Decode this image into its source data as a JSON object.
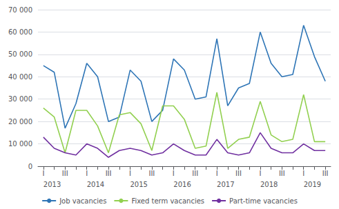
{
  "chart_data": {
    "type": "line",
    "categories": [
      "I",
      null,
      "III",
      null,
      "I",
      null,
      "III",
      null,
      "I",
      null,
      "III",
      null,
      "I",
      null,
      "III",
      null,
      "I",
      null,
      "III",
      null,
      "I",
      null,
      "III",
      null,
      "I",
      null,
      "III"
    ],
    "series": [
      {
        "name": "Job vacancies",
        "color": "#2E75B6",
        "values": [
          45000,
          42000,
          17000,
          28000,
          46000,
          40000,
          20000,
          22000,
          43000,
          38000,
          20000,
          25000,
          48000,
          43000,
          30000,
          31000,
          57000,
          27000,
          35000,
          37000,
          60000,
          46000,
          40000,
          41000,
          63000,
          49000,
          38000
        ]
      },
      {
        "name": "Fixed term vacancies",
        "color": "#92D050",
        "values": [
          26000,
          22000,
          6000,
          25000,
          25000,
          18000,
          6000,
          23000,
          24000,
          19000,
          7000,
          27000,
          27000,
          21000,
          8000,
          9000,
          33000,
          8000,
          12000,
          13000,
          29000,
          14000,
          11000,
          12000,
          32000,
          11000,
          11000
        ]
      },
      {
        "name": "Part-time vacancies",
        "color": "#7030A0",
        "values": [
          13000,
          8000,
          6000,
          5000,
          10000,
          8000,
          4000,
          7000,
          8000,
          7000,
          5000,
          6000,
          10000,
          7000,
          5000,
          5000,
          12000,
          6000,
          5000,
          6000,
          15000,
          8000,
          6000,
          6000,
          10000,
          7000,
          7000
        ]
      }
    ],
    "annotations": [
      {
        "text": "2013",
        "x": 0
      },
      {
        "text": "2014",
        "x": 4
      },
      {
        "text": "2015",
        "x": 8
      },
      {
        "text": "2016",
        "x": 12
      },
      {
        "text": "2017",
        "x": 16
      },
      {
        "text": "2018",
        "x": 20
      },
      {
        "text": "2019",
        "x": 24
      }
    ],
    "ylim": [
      0,
      70000
    ],
    "yticks": [
      0,
      {
        "value": 10000,
        "label": "10 000"
      },
      {
        "value": 20000,
        "label": "20 000"
      },
      {
        "value": 30000,
        "label": "30 000"
      },
      {
        "value": 40000,
        "label": "40 000"
      },
      {
        "value": 50000,
        "label": "50 000"
      },
      {
        "value": 60000,
        "label": "60 000"
      },
      {
        "value": 70000,
        "label": "70 000"
      }
    ],
    "grid": true,
    "legend": "bottom"
  }
}
